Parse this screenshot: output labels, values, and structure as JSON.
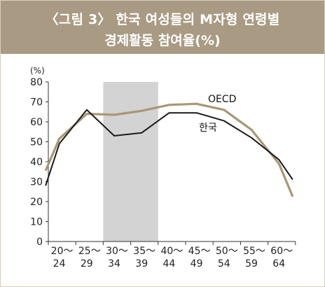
{
  "header": {
    "title_line1": "〈그림 3〉 한국 여성들의 M자형 연령별",
    "title_line2": "경제활동 참여율(%)"
  },
  "colors": {
    "header_bg": "#a99b83",
    "oecd_line": "#a89775",
    "korea_line": "#1a1a1a",
    "highlight_band": "#d3d3d3"
  },
  "chart_data": {
    "type": "line",
    "title": "〈그림 3〉 한국 여성들의 M자형 연령별 경제활동 참여율(%)",
    "ylabel": "(%)",
    "xlabel": "",
    "ylim": [
      0,
      80
    ],
    "yticks": [
      0,
      10,
      20,
      30,
      40,
      50,
      60,
      70,
      80
    ],
    "categories": [
      {
        "top": "20～",
        "bottom": "24"
      },
      {
        "top": "25～",
        "bottom": "29"
      },
      {
        "top": "30～",
        "bottom": "34"
      },
      {
        "top": "35～",
        "bottom": "39"
      },
      {
        "top": "40～",
        "bottom": "44"
      },
      {
        "top": "45～",
        "bottom": "49"
      },
      {
        "top": "50～",
        "bottom": "54"
      },
      {
        "top": "55～",
        "bottom": "59"
      },
      {
        "top": "60～",
        "bottom": "64"
      }
    ],
    "highlight_range": [
      "30～34",
      "35～39"
    ],
    "series": [
      {
        "name": "OECD",
        "x": [
          19.5,
          22,
          27,
          32,
          37,
          42,
          47,
          52,
          57,
          62,
          64.5
        ],
        "values": [
          35.5,
          51.5,
          64,
          63.5,
          65.5,
          68.5,
          69,
          66,
          56,
          39,
          22.5
        ]
      },
      {
        "name": "한국",
        "x": [
          19.5,
          22,
          27,
          32,
          37,
          42,
          47,
          52,
          57,
          62,
          64.5
        ],
        "values": [
          28,
          49,
          66,
          53,
          54.5,
          64.5,
          64.5,
          60.5,
          52,
          41,
          31
        ]
      }
    ],
    "grid": false,
    "legend": "inline labels"
  }
}
